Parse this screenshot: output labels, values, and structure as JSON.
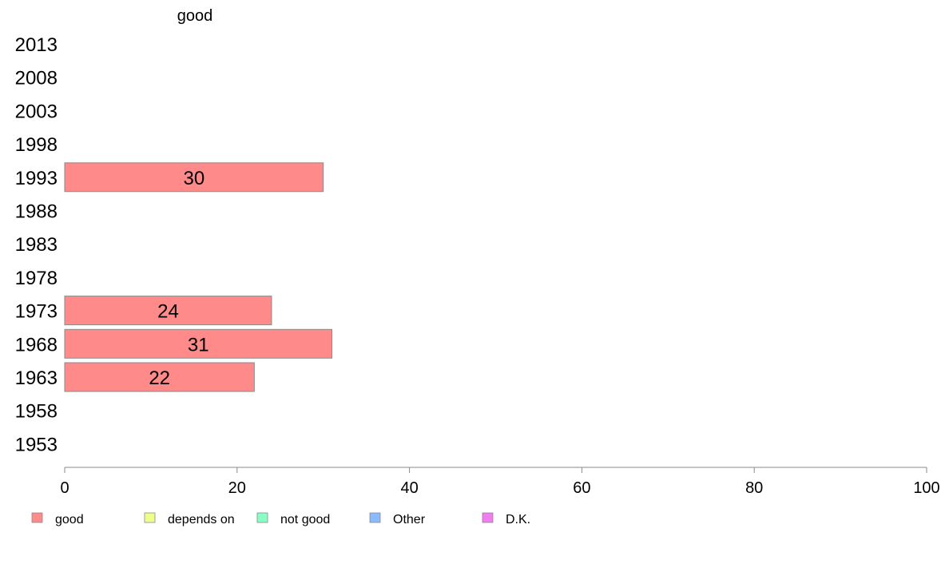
{
  "chart_data": {
    "type": "bar",
    "orientation": "horizontal",
    "title": "good",
    "categories": [
      "2013",
      "2008",
      "2003",
      "1998",
      "1993",
      "1988",
      "1983",
      "1978",
      "1973",
      "1968",
      "1963",
      "1958",
      "1953"
    ],
    "series": [
      {
        "name": "good",
        "color": "#ff8a8a",
        "values": [
          null,
          null,
          null,
          null,
          30,
          null,
          null,
          null,
          24,
          31,
          22,
          null,
          null
        ]
      }
    ],
    "data_labels": [
      null,
      null,
      null,
      null,
      "30",
      null,
      null,
      null,
      "24",
      "31",
      "22",
      null,
      null
    ],
    "xlim": [
      0,
      100
    ],
    "xticks": [
      0,
      20,
      40,
      60,
      80,
      100
    ],
    "xlabel": "",
    "ylabel": "",
    "grid": false,
    "legend": {
      "placement": "bottom-left",
      "entries": [
        {
          "label": "good",
          "color": "#ff8a8a"
        },
        {
          "label": "depends on",
          "color": "#eeff8a"
        },
        {
          "label": "not good",
          "color": "#8affc4"
        },
        {
          "label": "Other",
          "color": "#8abaff"
        },
        {
          "label": "D.K.",
          "color": "#f07ef0"
        }
      ]
    }
  }
}
